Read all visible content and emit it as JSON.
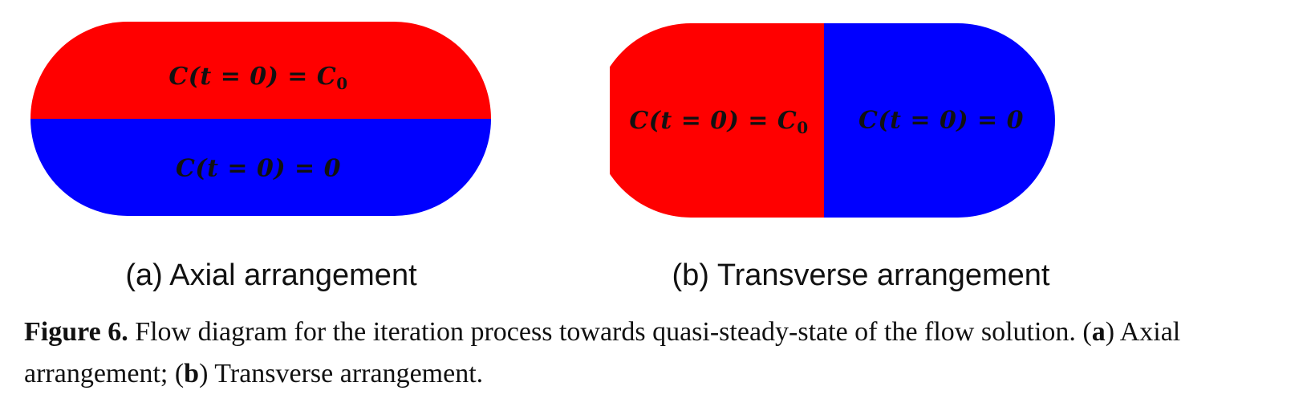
{
  "colors": {
    "red": "#ff0000",
    "blue": "#0000ff"
  },
  "panel_a": {
    "top_label": "C(t = 0) = C",
    "top_label_sub": "0",
    "bottom_label": "C(t = 0) = 0",
    "caption": "(a) Axial arrangement"
  },
  "panel_b": {
    "left_label": "C(t = 0) = C",
    "left_label_sub": "0",
    "right_label": "C(t = 0) = 0",
    "caption": "(b) Transverse arrangement"
  },
  "figure_caption": {
    "label": "Figure 6.",
    "text": " Flow diagram for the iteration process towards quasi-steady-state of the flow solution. (",
    "a_marker": "a",
    "a_text": ") Axial arrangement; (",
    "b_marker": "b",
    "b_text": ") Transverse arrangement."
  }
}
